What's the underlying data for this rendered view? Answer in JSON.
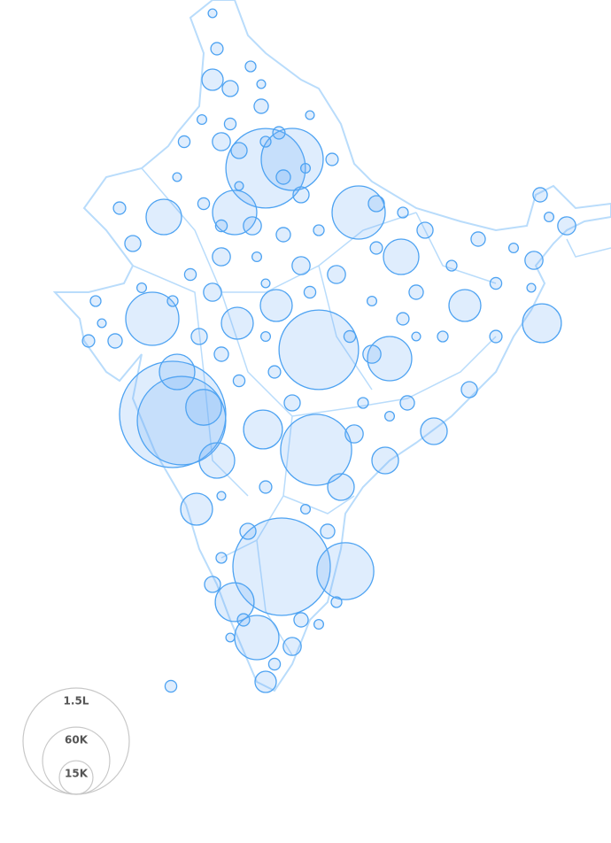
{
  "map": {
    "type": "bubble-map",
    "values": [
      150000,
      104000,
      67000,
      84000,
      126000,
      84000,
      43000,
      17000,
      16700,
      37500,
      37500,
      20000,
      26000,
      51000,
      26000,
      26000,
      20000,
      13500,
      13500,
      13500,
      16700,
      13500,
      9400,
      9400,
      9400,
      6000,
      6000,
      16700,
      16700,
      20000,
      1000,
      2000,
      3400,
      1500,
      2700,
      1200,
      4300,
      1800,
      1000,
      2000,
      3400,
      1500,
      2700,
      1200,
      4300,
      1800,
      1000,
      2000,
      3400,
      1500,
      2700,
      1200,
      4300,
      1800,
      1000,
      2000,
      3400,
      1500,
      2700,
      1200,
      4300,
      1800,
      1000,
      2000,
      3400,
      1500,
      2700,
      1200,
      4300,
      1800,
      1000,
      2000,
      3400,
      1500,
      2700,
      1200,
      4300,
      1800,
      1000,
      2000,
      3400,
      1500,
      2700,
      1200,
      4300,
      1800,
      1000,
      2000,
      3400,
      1500,
      2700,
      1200,
      4300,
      1800,
      1000,
      2000,
      3400,
      1500,
      2700,
      1200,
      4300,
      1800,
      1000,
      2000,
      3400,
      1500,
      2700,
      1200,
      4300,
      1800,
      1000,
      2000,
      3400,
      1500,
      2700,
      1200,
      4300,
      1800
    ],
    "legend": [
      {
        "value": 150000,
        "label": "1.5L"
      },
      {
        "value": 60000,
        "label": "60K"
      },
      {
        "value": 15000,
        "label": "15K"
      }
    ]
  }
}
